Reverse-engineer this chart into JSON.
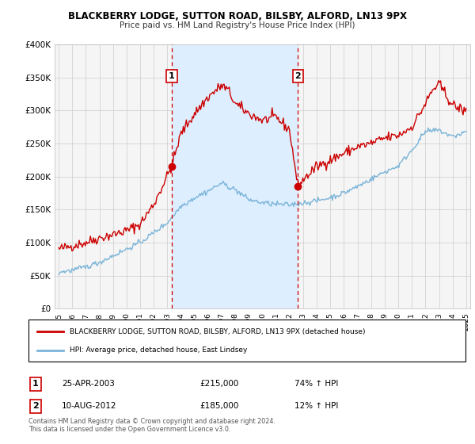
{
  "title": "BLACKBERRY LODGE, SUTTON ROAD, BILSBY, ALFORD, LN13 9PX",
  "subtitle": "Price paid vs. HM Land Registry's House Price Index (HPI)",
  "legend_line1": "BLACKBERRY LODGE, SUTTON ROAD, BILSBY, ALFORD, LN13 9PX (detached house)",
  "legend_line2": "HPI: Average price, detached house, East Lindsey",
  "annotation1_label": "1",
  "annotation1_date": "25-APR-2003",
  "annotation1_price": "£215,000",
  "annotation1_hpi": "74% ↑ HPI",
  "annotation2_label": "2",
  "annotation2_date": "10-AUG-2012",
  "annotation2_price": "£185,000",
  "annotation2_hpi": "12% ↑ HPI",
  "footer": "Contains HM Land Registry data © Crown copyright and database right 2024.\nThis data is licensed under the Open Government Licence v3.0.",
  "sale1_year": 2003.32,
  "sale1_value": 215000,
  "sale2_year": 2012.61,
  "sale2_value": 185000,
  "hpi_color": "#7ab4d8",
  "price_color": "#cc0000",
  "shaded_color": "#ddeeff",
  "vline_color": "#cc0000",
  "bg_color": "#ffffff",
  "plot_bg_color": "#f5f5f5",
  "ylim": [
    0,
    400000
  ],
  "xlim_start": 1994.7,
  "xlim_end": 2025.3,
  "yticks": [
    0,
    50000,
    100000,
    150000,
    200000,
    250000,
    300000,
    350000,
    400000
  ],
  "red_line_control_years": [
    1995,
    1996,
    1997,
    1998,
    1999,
    2000,
    2001,
    2002,
    2003.32,
    2004,
    2005,
    2006,
    2007,
    2007.5,
    2008,
    2009,
    2010,
    2011,
    2012,
    2012.61,
    2013,
    2014,
    2015,
    2016,
    2017,
    2018,
    2019,
    2020,
    2021,
    2022,
    2022.5,
    2023,
    2024,
    2025
  ],
  "red_line_control_vals": [
    90000,
    95000,
    100000,
    107000,
    112000,
    118000,
    128000,
    158000,
    215000,
    265000,
    295000,
    320000,
    338000,
    330000,
    310000,
    295000,
    285000,
    290000,
    270000,
    185000,
    195000,
    215000,
    225000,
    235000,
    245000,
    250000,
    258000,
    262000,
    275000,
    310000,
    330000,
    340000,
    308000,
    298000
  ],
  "blue_line_control_years": [
    1995,
    1996,
    1997,
    1998,
    1999,
    2000,
    2001,
    2002,
    2003,
    2004,
    2005,
    2006,
    2007,
    2008,
    2009,
    2010,
    2011,
    2012,
    2013,
    2014,
    2015,
    2016,
    2017,
    2018,
    2019,
    2020,
    2021,
    2022,
    2023,
    2024,
    2025
  ],
  "blue_line_control_vals": [
    55000,
    58000,
    63000,
    70000,
    80000,
    90000,
    100000,
    115000,
    130000,
    155000,
    168000,
    178000,
    190000,
    180000,
    165000,
    160000,
    158000,
    157000,
    160000,
    163000,
    168000,
    175000,
    185000,
    196000,
    207000,
    216000,
    240000,
    268000,
    270000,
    260000,
    268000
  ]
}
